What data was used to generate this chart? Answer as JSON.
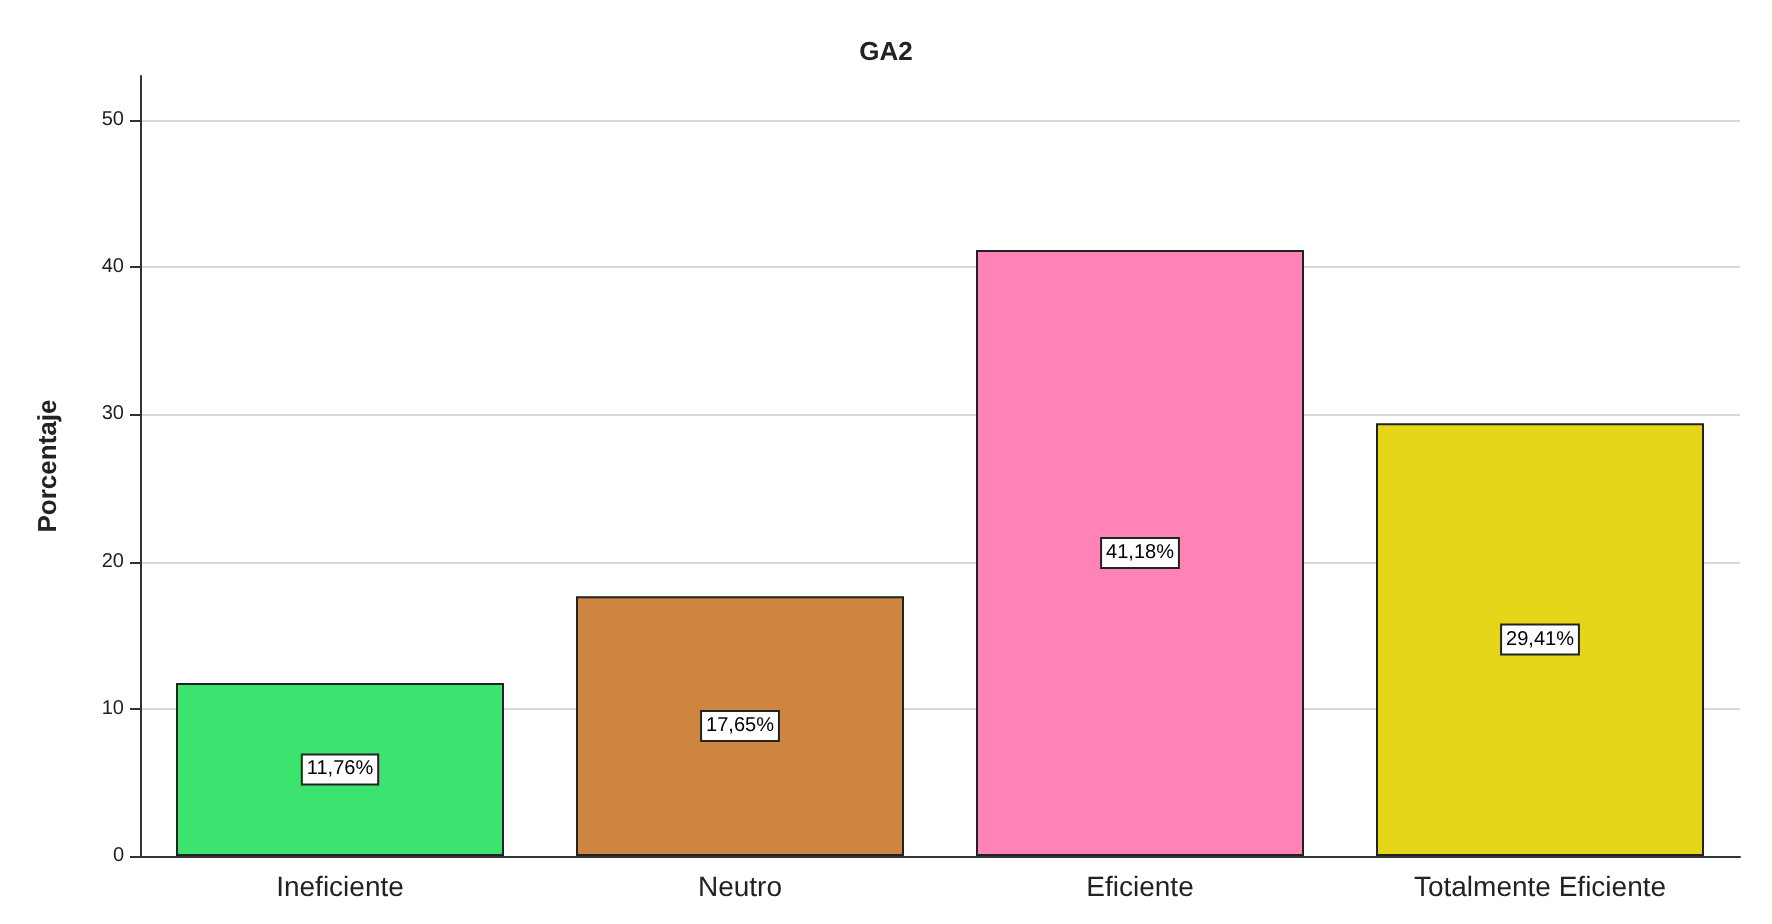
{
  "chart_data": {
    "type": "bar",
    "title": "GA2",
    "ylabel": "Porcentaje",
    "categories": [
      "Ineficiente",
      "Neutro",
      "Eficiente",
      "Totalmente Eficiente"
    ],
    "values": [
      11.76,
      17.65,
      41.18,
      29.41
    ],
    "colors": [
      "#3de36f",
      "#cd853f",
      "#ff83b5",
      "#e6d61a"
    ],
    "value_labels": [
      "11,76%",
      "17,65%",
      "41,18%",
      "29,41%"
    ],
    "ylim": [
      0,
      53
    ],
    "yticks": [
      0,
      10,
      20,
      30,
      40,
      50
    ],
    "grid": "y"
  }
}
